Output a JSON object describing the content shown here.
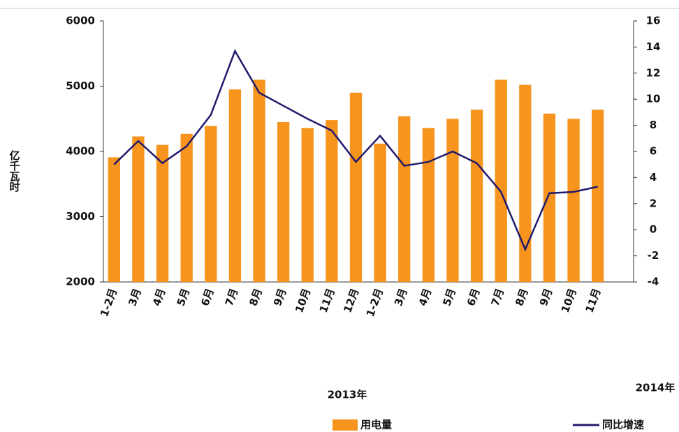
{
  "chart_data": {
    "type": "bar-line",
    "y_label": "亿千瓦时",
    "categories": [
      "1-2月",
      "3月",
      "4月",
      "5月",
      "6月",
      "7月",
      "8月",
      "9月",
      "10月",
      "11月",
      "12月",
      "1-2月",
      "3月",
      "4月",
      "5月",
      "6月",
      "7月",
      "8月",
      "9月",
      "10月",
      "11月"
    ],
    "groups": [
      "2013年",
      "2014年"
    ],
    "series": [
      {
        "name": "用电量",
        "color": "#f7941d",
        "values": [
          3910,
          4230,
          4100,
          4270,
          4390,
          4950,
          5100,
          4450,
          4360,
          4480,
          4900,
          4120,
          4540,
          4360,
          4500,
          4640,
          5100,
          5020,
          4580,
          4500,
          4640
        ]
      },
      {
        "name": "同比增速",
        "color": "#1f1a6b",
        "axis": "y2",
        "values": [
          5.0,
          6.8,
          5.1,
          6.4,
          8.8,
          13.7,
          10.5,
          9.5,
          8.5,
          7.6,
          5.2,
          7.2,
          4.9,
          5.2,
          6.0,
          5.1,
          2.9,
          -1.5,
          2.8,
          2.9,
          3.3
        ]
      }
    ],
    "ylim": [
      2000,
      6000
    ],
    "yticks": [
      2000,
      3000,
      4000,
      5000,
      6000
    ],
    "y2lim": [
      -4,
      16
    ],
    "y2ticks": [
      -4,
      -2,
      0,
      2,
      4,
      6,
      8,
      10,
      12,
      14,
      16
    ],
    "legend": "bottom"
  }
}
